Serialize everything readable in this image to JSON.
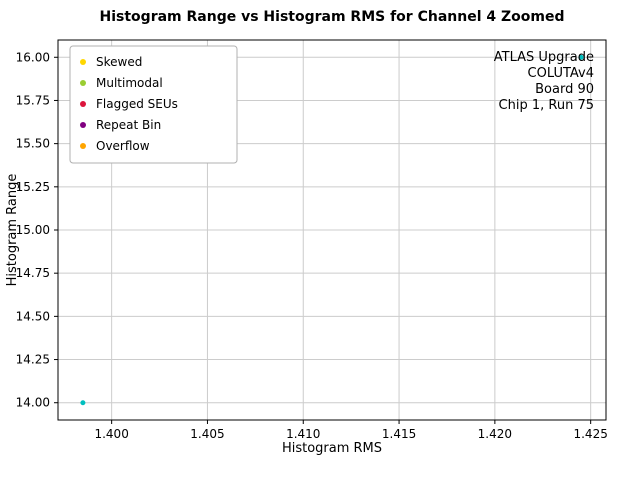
{
  "chart_data": {
    "type": "scatter",
    "title": "Histogram Range vs Histogram RMS for Channel 4 Zoomed",
    "xlabel": "Histogram RMS",
    "ylabel": "Histogram Range",
    "xlim": [
      1.3972,
      1.4258
    ],
    "ylim": [
      13.9,
      16.1
    ],
    "xticks": {
      "values": [
        1.4,
        1.405,
        1.41,
        1.415,
        1.42,
        1.425
      ],
      "labels": [
        "1.400",
        "1.405",
        "1.410",
        "1.415",
        "1.420",
        "1.425"
      ]
    },
    "yticks": {
      "values": [
        14.0,
        14.25,
        14.5,
        14.75,
        15.0,
        15.25,
        15.5,
        15.75,
        16.0
      ],
      "labels": [
        "14.00",
        "14.25",
        "14.50",
        "14.75",
        "15.00",
        "15.25",
        "15.50",
        "15.75",
        "16.00"
      ]
    },
    "points": [
      {
        "x": 1.3985,
        "y": 14.0
      },
      {
        "x": 1.4245,
        "y": 16.0
      }
    ],
    "point_color": "#00bfbf",
    "grid": true,
    "grid_color": "#cccccc",
    "legend_position": "upper left",
    "legend": [
      {
        "label": "Skewed",
        "color": "#ffd700"
      },
      {
        "label": "Multimodal",
        "color": "#9acd32"
      },
      {
        "label": "Flagged SEUs",
        "color": "#dc143c"
      },
      {
        "label": "Repeat Bin",
        "color": "#800080"
      },
      {
        "label": "Overflow",
        "color": "#ffa500"
      }
    ],
    "annotation": {
      "lines": [
        "ATLAS Upgrade",
        "COLUTAv4",
        "Board 90",
        "Chip 1, Run 75"
      ],
      "align": "right",
      "position": "upper right"
    }
  }
}
